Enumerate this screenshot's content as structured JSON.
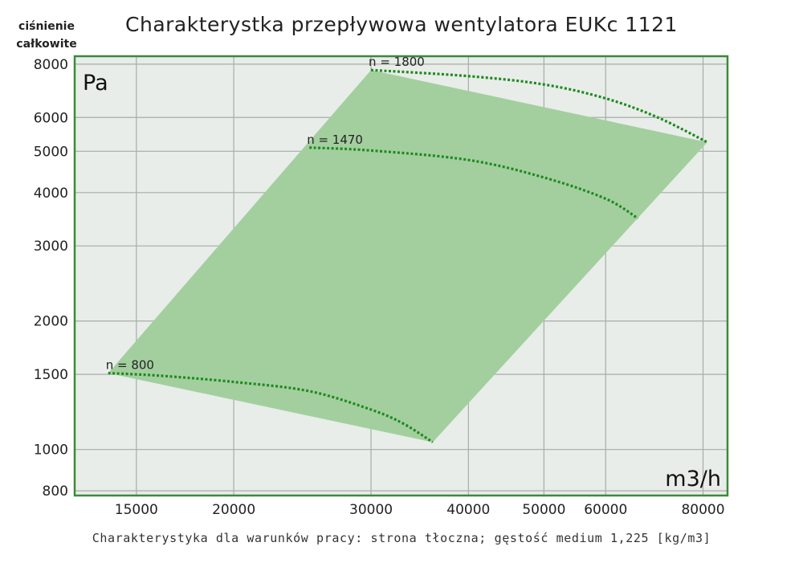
{
  "chart_data": {
    "type": "line",
    "title": "Charakterystka przepływowa wentylatora EUKc 1121",
    "ylabel": "ciśnienie całkowite",
    "y_unit": "Pa",
    "x_unit": "m3/h",
    "footnote": "Charakterystyka dla warunków pracy: strona tłoczna; gęstość medium 1,225 [kg/m3]",
    "xscale": "log",
    "yscale": "log",
    "xlim": [
      12500,
      86000
    ],
    "ylim": [
      780,
      8350
    ],
    "grid": true,
    "x_ticks": [
      15000,
      20000,
      30000,
      40000,
      50000,
      60000,
      80000
    ],
    "y_ticks": [
      800,
      1000,
      1500,
      2000,
      3000,
      4000,
      5000,
      6000,
      8000
    ],
    "x_tick_labels": [
      "15000",
      "20000",
      "30000",
      "40000",
      "50000",
      "60000",
      "80000"
    ],
    "y_tick_labels": [
      "800",
      "1000",
      "1500",
      "2000",
      "3000",
      "4000",
      "5000",
      "6000",
      "8000"
    ],
    "operating_area": {
      "color": "#a3cf9f",
      "boundary": [
        [
          13800,
          1510
        ],
        [
          30000,
          7750
        ],
        [
          81000,
          5250
        ],
        [
          36000,
          1040
        ]
      ]
    },
    "series": [
      {
        "name": "n = 800",
        "x": [
          13800,
          16000,
          20000,
          25000,
          30000,
          33000,
          36000
        ],
        "y": [
          1510,
          1490,
          1440,
          1370,
          1240,
          1150,
          1040
        ]
      },
      {
        "name": "n = 1470",
        "x": [
          25000,
          30000,
          40000,
          50000,
          60000,
          66000
        ],
        "y": [
          5100,
          5020,
          4770,
          4340,
          3870,
          3480
        ]
      },
      {
        "name": "n = 1800",
        "x": [
          30000,
          40000,
          50000,
          60000,
          70000,
          81000
        ],
        "y": [
          7750,
          7500,
          7170,
          6650,
          6000,
          5250
        ]
      }
    ],
    "curve_color": "#1f8a1f",
    "frame_color": "#3a8a3a",
    "background_color": "#e8ede9"
  }
}
